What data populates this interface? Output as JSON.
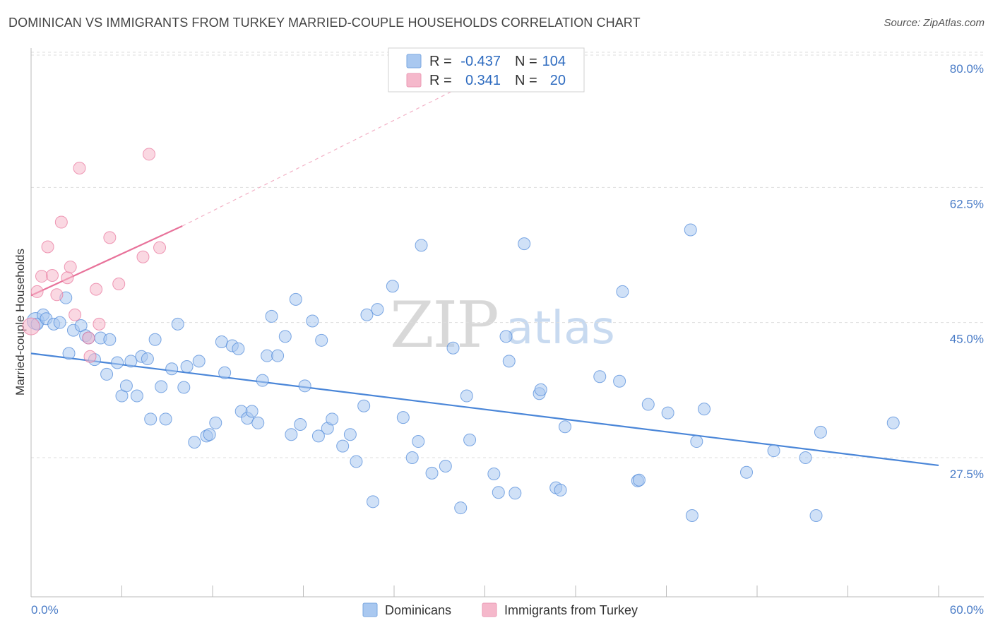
{
  "header": {
    "title": "DOMINICAN VS IMMIGRANTS FROM TURKEY MARRIED-COUPLE HOUSEHOLDS CORRELATION CHART",
    "source": "Source: ZipAtlas.com"
  },
  "watermark": {
    "zip": "ZIP",
    "atlas": "atlas"
  },
  "legend": {
    "r_label": "R =",
    "n_label": "N =",
    "entries": [
      {
        "r": "-0.437",
        "n": "104",
        "color": "#a9c8f0"
      },
      {
        "r": "0.341",
        "n": "20",
        "color": "#f5b8cb"
      }
    ]
  },
  "bottom_legend": [
    {
      "label": "Dominicans",
      "color": "#a9c8f0"
    },
    {
      "label": "Immigrants from Turkey",
      "color": "#f5b8cb"
    }
  ],
  "chart_data": {
    "type": "scatter",
    "title": "DOMINICAN VS IMMIGRANTS FROM TURKEY MARRIED-COUPLE HOUSEHOLDS CORRELATION CHART",
    "xlabel": "",
    "ylabel": "Married-couple Households",
    "xlim": [
      0,
      60
    ],
    "ylim": [
      10,
      82
    ],
    "x_tick_labels": [
      "0.0%",
      "60.0%"
    ],
    "y_ticks": [
      27.5,
      45.0,
      62.5,
      80.0
    ],
    "y_tick_labels": [
      "27.5%",
      "45.0%",
      "62.5%",
      "80.0%"
    ],
    "grid": true,
    "series": [
      {
        "name": "Dominicans",
        "color": "#4a86d8",
        "fill": "#a9c8f0",
        "trend": {
          "x0": 0,
          "y0": 41.0,
          "x1": 60,
          "y1": 26.5
        },
        "points": [
          [
            0.3,
            45.2
          ],
          [
            0.4,
            44.8
          ],
          [
            0.8,
            46.0
          ],
          [
            1.0,
            45.5
          ],
          [
            1.5,
            44.8
          ],
          [
            1.9,
            45.0
          ],
          [
            2.3,
            48.2
          ],
          [
            2.5,
            41.0
          ],
          [
            2.8,
            44.0
          ],
          [
            3.3,
            44.6
          ],
          [
            3.6,
            43.3
          ],
          [
            3.8,
            43.0
          ],
          [
            4.2,
            40.2
          ],
          [
            4.6,
            43.0
          ],
          [
            5.0,
            38.3
          ],
          [
            5.2,
            42.8
          ],
          [
            5.7,
            39.8
          ],
          [
            6.0,
            35.5
          ],
          [
            6.3,
            36.8
          ],
          [
            6.6,
            40.0
          ],
          [
            7.0,
            35.5
          ],
          [
            7.3,
            40.6
          ],
          [
            7.7,
            40.3
          ],
          [
            7.9,
            32.5
          ],
          [
            8.2,
            42.8
          ],
          [
            8.6,
            36.7
          ],
          [
            8.9,
            32.5
          ],
          [
            9.3,
            39.0
          ],
          [
            9.7,
            44.8
          ],
          [
            10.1,
            36.6
          ],
          [
            10.3,
            39.3
          ],
          [
            10.8,
            29.5
          ],
          [
            11.1,
            40.0
          ],
          [
            11.6,
            30.3
          ],
          [
            11.8,
            30.5
          ],
          [
            12.2,
            32.0
          ],
          [
            12.6,
            42.5
          ],
          [
            12.8,
            38.5
          ],
          [
            13.3,
            42.0
          ],
          [
            13.7,
            41.6
          ],
          [
            13.9,
            33.5
          ],
          [
            14.3,
            32.6
          ],
          [
            14.6,
            33.5
          ],
          [
            15.0,
            32.0
          ],
          [
            15.3,
            37.5
          ],
          [
            15.6,
            40.7
          ],
          [
            15.9,
            45.8
          ],
          [
            16.3,
            40.7
          ],
          [
            16.8,
            43.2
          ],
          [
            17.2,
            30.5
          ],
          [
            17.5,
            48.0
          ],
          [
            17.8,
            31.8
          ],
          [
            18.1,
            36.8
          ],
          [
            18.6,
            45.2
          ],
          [
            19.0,
            30.3
          ],
          [
            19.2,
            42.7
          ],
          [
            19.6,
            31.3
          ],
          [
            19.9,
            32.5
          ],
          [
            20.6,
            29.0
          ],
          [
            21.1,
            30.5
          ],
          [
            21.5,
            27.0
          ],
          [
            22.0,
            34.2
          ],
          [
            22.2,
            46.0
          ],
          [
            22.6,
            21.8
          ],
          [
            22.9,
            46.7
          ],
          [
            23.9,
            49.7
          ],
          [
            24.6,
            32.7
          ],
          [
            25.2,
            27.5
          ],
          [
            25.6,
            29.6
          ],
          [
            25.8,
            55.0
          ],
          [
            26.5,
            25.5
          ],
          [
            27.4,
            26.4
          ],
          [
            27.9,
            41.7
          ],
          [
            28.4,
            21.0
          ],
          [
            28.8,
            35.5
          ],
          [
            29.0,
            29.8
          ],
          [
            30.6,
            25.4
          ],
          [
            30.9,
            23.0
          ],
          [
            31.4,
            43.2
          ],
          [
            31.6,
            40.0
          ],
          [
            32.0,
            22.9
          ],
          [
            32.6,
            55.2
          ],
          [
            33.6,
            35.8
          ],
          [
            33.7,
            36.3
          ],
          [
            34.7,
            23.6
          ],
          [
            35.0,
            23.3
          ],
          [
            35.3,
            31.5
          ],
          [
            37.6,
            38.0
          ],
          [
            38.9,
            37.4
          ],
          [
            39.1,
            49.0
          ],
          [
            40.1,
            24.5
          ],
          [
            40.2,
            24.6
          ],
          [
            40.8,
            34.4
          ],
          [
            42.1,
            33.3
          ],
          [
            43.6,
            57.0
          ],
          [
            43.7,
            20.0
          ],
          [
            44.0,
            29.6
          ],
          [
            44.5,
            33.8
          ],
          [
            47.3,
            25.6
          ],
          [
            49.1,
            28.4
          ],
          [
            51.2,
            27.5
          ],
          [
            51.9,
            20.0
          ],
          [
            52.2,
            30.8
          ],
          [
            57.0,
            32.0
          ]
        ]
      },
      {
        "name": "Immigrants from Turkey",
        "color": "#e8729a",
        "fill": "#f5b8cb",
        "trend": {
          "x0": 0,
          "y0": 48.5,
          "x1": 10,
          "y1": 57.5,
          "dash_x1": 33,
          "dash_y1": 80
        },
        "points": [
          [
            0.0,
            44.5
          ],
          [
            0.4,
            49.0
          ],
          [
            0.7,
            51.0
          ],
          [
            1.1,
            54.8
          ],
          [
            1.4,
            51.1
          ],
          [
            1.7,
            48.6
          ],
          [
            2.0,
            58.0
          ],
          [
            2.4,
            50.8
          ],
          [
            2.6,
            52.2
          ],
          [
            2.9,
            46.0
          ],
          [
            3.2,
            65.0
          ],
          [
            3.8,
            43.0
          ],
          [
            3.9,
            40.6
          ],
          [
            4.3,
            49.3
          ],
          [
            4.5,
            44.8
          ],
          [
            5.2,
            56.0
          ],
          [
            5.8,
            50.0
          ],
          [
            7.4,
            53.5
          ],
          [
            7.8,
            66.8
          ],
          [
            8.5,
            54.7
          ]
        ]
      }
    ]
  }
}
